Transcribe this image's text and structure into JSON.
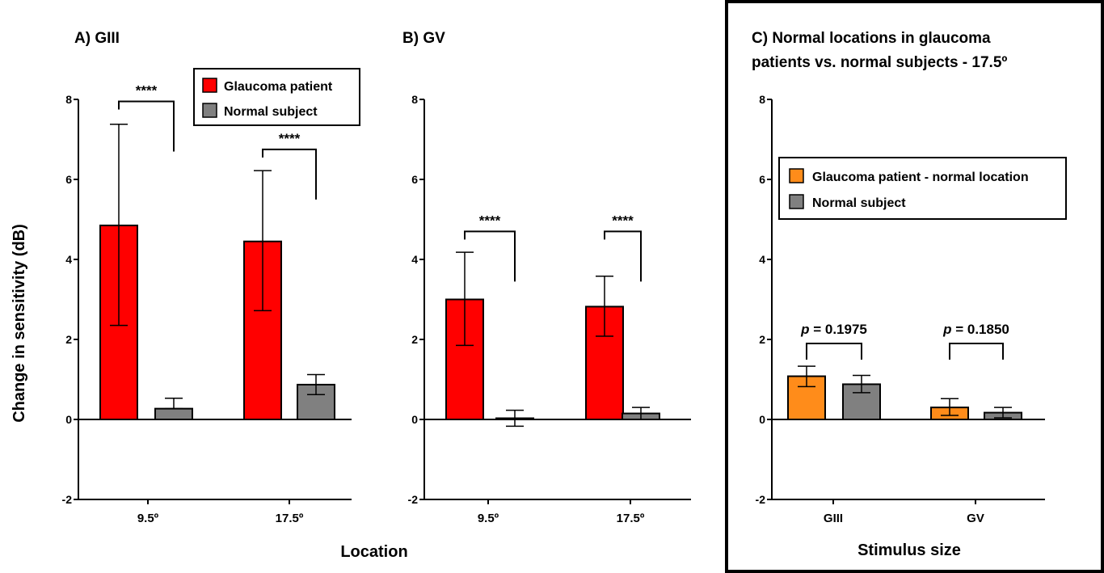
{
  "ylabel": "Change in sensitivity (dB)",
  "panelA_xlabel": "Location",
  "colors": {
    "glaucoma": "#ff0000",
    "glaucoma_normal_loc": "#ff8c1a",
    "normal": "#808080",
    "axis": "#000000"
  },
  "chart_data": [
    {
      "type": "bar",
      "title": "A) GIII",
      "categories": [
        "9.5º",
        "17.5º"
      ],
      "ylim": [
        -2,
        8
      ],
      "yticks": [
        -2,
        0,
        2,
        4,
        6,
        8
      ],
      "legend": {
        "placement": "top-right",
        "entries": [
          "Glaucoma patient",
          "Normal subject"
        ]
      },
      "series": [
        {
          "name": "Glaucoma patient",
          "color": "#ff0000",
          "values": [
            4.85,
            4.45
          ],
          "err_low": [
            2.35,
            2.72
          ],
          "err_high": [
            7.38,
            6.22
          ]
        },
        {
          "name": "Normal subject",
          "color": "#808080",
          "values": [
            0.27,
            0.87
          ],
          "err_low": [
            0.27,
            0.62
          ],
          "err_high": [
            0.53,
            1.12
          ]
        }
      ],
      "significance": [
        "****",
        "****"
      ],
      "sig_bracket_y": [
        7.95,
        6.75
      ]
    },
    {
      "type": "bar",
      "title": "B) GV",
      "categories": [
        "9.5º",
        "17.5º"
      ],
      "ylim": [
        -2,
        8
      ],
      "yticks": [
        -2,
        0,
        2,
        4,
        6,
        8
      ],
      "series": [
        {
          "name": "Glaucoma patient",
          "color": "#ff0000",
          "values": [
            3.0,
            2.82
          ],
          "err_low": [
            1.85,
            2.08
          ],
          "err_high": [
            4.18,
            3.58
          ]
        },
        {
          "name": "Normal subject",
          "color": "#808080",
          "values": [
            0.03,
            0.15
          ],
          "err_low": [
            -0.17,
            0.0
          ],
          "err_high": [
            0.23,
            0.3
          ]
        }
      ],
      "significance": [
        "****",
        "****"
      ],
      "sig_bracket_y": [
        4.7,
        4.7
      ]
    },
    {
      "type": "bar",
      "title": "C) Normal locations in glaucoma patients vs. normal subjects - 17.5º",
      "title_lines": [
        "C) Normal locations in glaucoma",
        "patients vs. normal subjects - 17.5º"
      ],
      "xlabel": "Stimulus size",
      "categories": [
        "GIII",
        "GV"
      ],
      "ylim": [
        -2,
        8
      ],
      "yticks": [
        -2,
        0,
        2,
        4,
        6,
        8
      ],
      "legend": {
        "placement": "upper-left",
        "entries": [
          "Glaucoma patient - normal location",
          "Normal subject"
        ]
      },
      "series": [
        {
          "name": "Glaucoma patient - normal location",
          "color": "#ff8c1a",
          "values": [
            1.08,
            0.3
          ],
          "err_low": [
            0.82,
            0.1
          ],
          "err_high": [
            1.33,
            0.52
          ]
        },
        {
          "name": "Normal subject",
          "color": "#808080",
          "values": [
            0.88,
            0.17
          ],
          "err_low": [
            0.67,
            0.04
          ],
          "err_high": [
            1.1,
            0.3
          ]
        }
      ],
      "significance": [
        "= 0.1975",
        "= 0.1850"
      ],
      "significance_prefix": "p",
      "sig_bracket_y": [
        1.9,
        1.9
      ]
    }
  ]
}
